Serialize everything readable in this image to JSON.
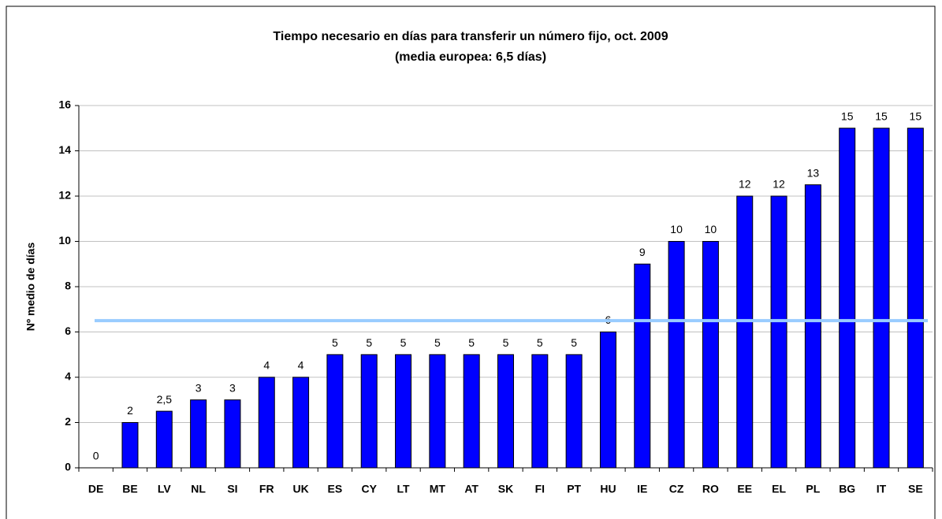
{
  "chart_data": {
    "type": "bar",
    "title": [
      "Tiempo necesario en días para transferir un número fijo, oct. 2009",
      "(media europea: 6,5 días)"
    ],
    "ylabel": "Nº medio de días",
    "categories": [
      "DE",
      "BE",
      "LV",
      "NL",
      "SI",
      "FR",
      "UK",
      "ES",
      "CY",
      "LT",
      "MT",
      "AT",
      "SK",
      "FI",
      "PT",
      "HU",
      "IE",
      "CZ",
      "RO",
      "EE",
      "EL",
      "PL",
      "BG",
      "IT",
      "SE"
    ],
    "values": [
      0,
      2,
      2.5,
      3,
      3,
      4,
      4,
      5,
      5,
      5,
      5,
      5,
      5,
      5,
      5,
      6,
      9,
      10,
      10,
      12,
      12,
      12.5,
      15,
      15,
      15
    ],
    "value_labels": [
      "0",
      "2",
      "2,5",
      "3",
      "3",
      "4",
      "4",
      "5",
      "5",
      "5",
      "5",
      "5",
      "5",
      "5",
      "5",
      "6",
      "9",
      "10",
      "10",
      "12",
      "12",
      "13",
      "15",
      "15",
      "15"
    ],
    "color": "#0000ff",
    "mean_line": {
      "value": 6.5,
      "color": "#99ccff"
    },
    "ylim": [
      0,
      16
    ],
    "yticks": [
      0,
      2,
      4,
      6,
      8,
      10,
      12,
      14,
      16
    ],
    "grid": true
  }
}
